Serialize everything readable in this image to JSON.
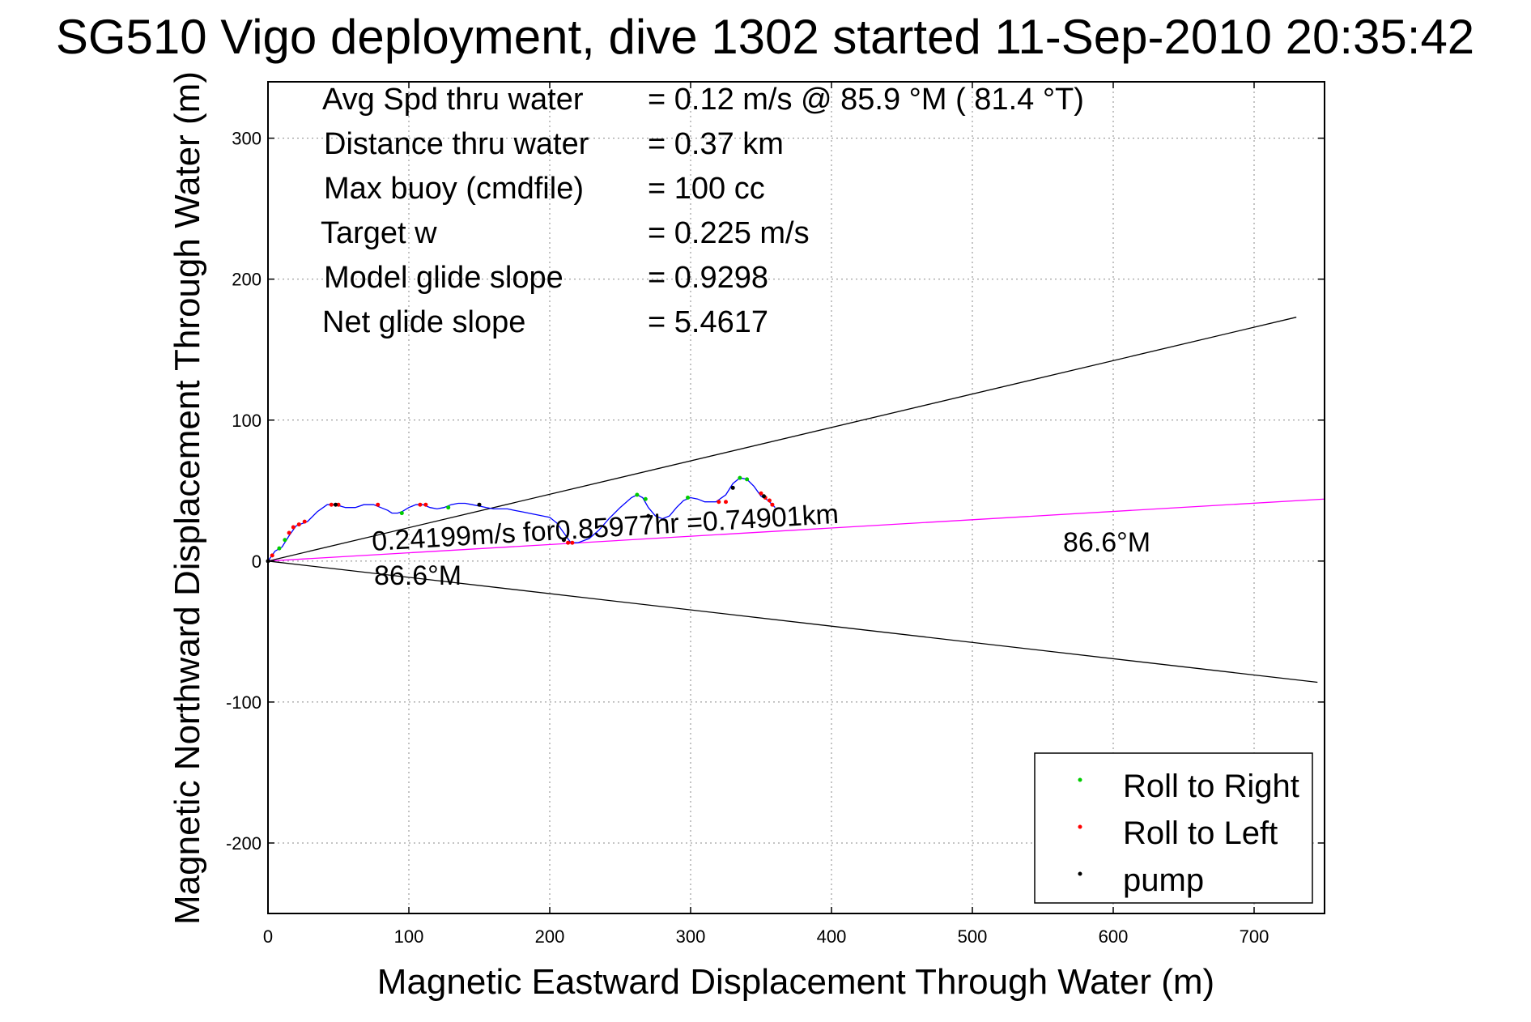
{
  "chart_data": {
    "type": "line",
    "title": "SG510 Vigo deployment, dive 1302 started 11-Sep-2010 20:35:42",
    "xlabel": "Magnetic Eastward Displacement Through Water (m)",
    "ylabel": "Magnetic Northward Displacement Through Water (m)",
    "xlim": [
      0,
      750
    ],
    "ylim": [
      -250,
      340
    ],
    "xticks": [
      0,
      100,
      200,
      300,
      400,
      500,
      600,
      700
    ],
    "yticks": [
      -200,
      -100,
      0,
      100,
      200,
      300
    ],
    "grid": true,
    "grid_style": "dotted",
    "stats": [
      {
        "label": "Avg Spd thru water",
        "value": "=  0.12 m/s @  85.9 °M ( 81.4 °T)"
      },
      {
        "label": "Distance thru water",
        "value": "=  0.37 km"
      },
      {
        "label": "Max buoy (cmdfile)",
        "value": "= 100 cc"
      },
      {
        "label": "Target w",
        "value": "= 0.225 m/s"
      },
      {
        "label": "Model glide slope",
        "value": "= 0.9298"
      },
      {
        "label": "Net glide slope",
        "value": "= 5.4617"
      }
    ],
    "annotations": {
      "current_label": "0.24199m/s for0.85977hr =0.74901km",
      "heading_near": "86.6°M",
      "heading_far": "86.6°M"
    },
    "series": [
      {
        "name": "track",
        "color": "#0000ff",
        "x": [
          0,
          5,
          10,
          15,
          20,
          28,
          35,
          42,
          48,
          55,
          62,
          68,
          75,
          80,
          85,
          88,
          92,
          95,
          100,
          105,
          110,
          115,
          120,
          125,
          130,
          135,
          140,
          145,
          150,
          155,
          160,
          165,
          170,
          175,
          180,
          185,
          190,
          195,
          200,
          205,
          210,
          215,
          220,
          228,
          235,
          242,
          250,
          258,
          262,
          266,
          270,
          275,
          280,
          285,
          290,
          295,
          300,
          305,
          310,
          318,
          325,
          330,
          335,
          340,
          345,
          350,
          355,
          360
        ],
        "y": [
          0,
          7,
          10,
          18,
          25,
          28,
          35,
          40,
          40,
          38,
          38,
          40,
          40,
          38,
          36,
          34,
          34,
          35,
          38,
          40,
          40,
          38,
          37,
          38,
          40,
          41,
          41,
          40,
          39,
          38,
          37,
          37,
          37,
          36,
          35,
          34,
          33,
          32,
          31,
          27,
          20,
          13,
          13,
          16,
          22,
          30,
          38,
          45,
          47,
          45,
          38,
          32,
          30,
          32,
          38,
          43,
          45,
          44,
          42,
          42,
          47,
          55,
          59,
          58,
          53,
          46,
          43,
          38
        ]
      },
      {
        "name": "Roll to Right",
        "color": "#00cc00",
        "marker": "dot",
        "x": [
          8,
          12,
          95,
          128,
          262,
          268,
          298,
          335,
          340
        ],
        "y": [
          9,
          15,
          34,
          38,
          47,
          44,
          45,
          59,
          58
        ]
      },
      {
        "name": "Roll to Left",
        "color": "#ff0000",
        "marker": "dot",
        "x": [
          3,
          15,
          18,
          22,
          26,
          45,
          50,
          78,
          108,
          112,
          210,
          213,
          216,
          320,
          325,
          350,
          353,
          356,
          358
        ],
        "y": [
          4,
          20,
          24,
          26,
          28,
          40,
          40,
          40,
          40,
          40,
          15,
          13,
          13,
          42,
          42,
          48,
          45,
          43,
          40
        ]
      },
      {
        "name": "pump",
        "color": "#000000",
        "marker": "dot",
        "x": [
          0,
          48,
          150,
          210,
          270,
          330,
          352
        ],
        "y": [
          0,
          40,
          40,
          15,
          32,
          52,
          46
        ]
      }
    ],
    "reference_lines": [
      {
        "color": "#000000",
        "x": [
          0,
          730
        ],
        "y": [
          0,
          173
        ]
      },
      {
        "color": "#000000",
        "x": [
          0,
          745
        ],
        "y": [
          0,
          -86
        ]
      },
      {
        "color": "#ff00ff",
        "x": [
          0,
          750
        ],
        "y": [
          0,
          44
        ]
      }
    ],
    "legend": {
      "placement": "bottom-right",
      "entries": [
        {
          "label": "Roll to Right",
          "color": "#00cc00"
        },
        {
          "label": "Roll to Left",
          "color": "#ff0000"
        },
        {
          "label": "pump",
          "color": "#000000"
        }
      ]
    }
  }
}
